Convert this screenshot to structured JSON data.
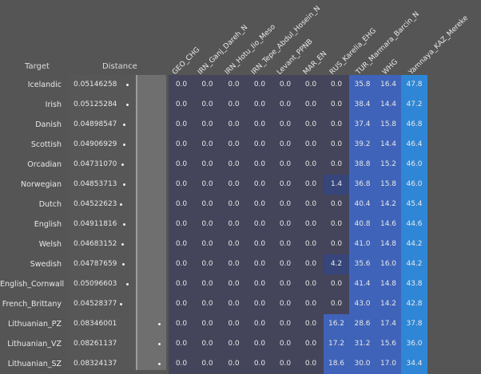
{
  "header": {
    "target": "Target",
    "distance": "Distance",
    "columns": [
      "GEO_CHG",
      "IRN_Ganj_Dareh_N",
      "IRN_Hotu_Iio_Meso",
      "IRN_Tepe_Abdul_Hosein_N",
      "Levant_PPNB",
      "MAR_EN",
      "RUS_Karelia_EHG",
      "TUR_Marmara_Barcin_N",
      "WHG",
      "Yamnaya_KAZ_Mereke"
    ]
  },
  "colors": {
    "background": "#555555",
    "zero_cell": "#44445a",
    "low_blue": "#36457a",
    "mid_blue": "#3f63b8",
    "high_blue": "#2f86d6"
  },
  "rows": [
    {
      "target": "Icelandic",
      "distance": "0.05146258",
      "dot": 0.05146258,
      "values": [
        "0.0",
        "0.0",
        "0.0",
        "0.0",
        "0.0",
        "0.0",
        "0.0",
        "35.8",
        "16.4",
        "47.8"
      ]
    },
    {
      "target": "Irish",
      "distance": "0.05125284",
      "dot": 0.05125284,
      "values": [
        "0.0",
        "0.0",
        "0.0",
        "0.0",
        "0.0",
        "0.0",
        "0.0",
        "38.4",
        "14.4",
        "47.2"
      ]
    },
    {
      "target": "Danish",
      "distance": "0.04898547",
      "dot": 0.04898547,
      "values": [
        "0.0",
        "0.0",
        "0.0",
        "0.0",
        "0.0",
        "0.0",
        "0.0",
        "37.4",
        "15.8",
        "46.8"
      ]
    },
    {
      "target": "Scottish",
      "distance": "0.04906929",
      "dot": 0.04906929,
      "values": [
        "0.0",
        "0.0",
        "0.0",
        "0.0",
        "0.0",
        "0.0",
        "0.0",
        "39.2",
        "14.4",
        "46.4"
      ]
    },
    {
      "target": "Orcadian",
      "distance": "0.04731070",
      "dot": 0.0473107,
      "values": [
        "0.0",
        "0.0",
        "0.0",
        "0.0",
        "0.0",
        "0.0",
        "0.0",
        "38.8",
        "15.2",
        "46.0"
      ]
    },
    {
      "target": "Norwegian",
      "distance": "0.04853713",
      "dot": 0.04853713,
      "values": [
        "0.0",
        "0.0",
        "0.0",
        "0.0",
        "0.0",
        "0.0",
        "1.4",
        "36.8",
        "15.8",
        "46.0"
      ]
    },
    {
      "target": "Dutch",
      "distance": "0.04522623",
      "dot": 0.04522623,
      "values": [
        "0.0",
        "0.0",
        "0.0",
        "0.0",
        "0.0",
        "0.0",
        "0.0",
        "40.4",
        "14.2",
        "45.4"
      ]
    },
    {
      "target": "English",
      "distance": "0.04911816",
      "dot": 0.04911816,
      "values": [
        "0.0",
        "0.0",
        "0.0",
        "0.0",
        "0.0",
        "0.0",
        "0.0",
        "40.8",
        "14.6",
        "44.6"
      ]
    },
    {
      "target": "Welsh",
      "distance": "0.04683152",
      "dot": 0.04683152,
      "values": [
        "0.0",
        "0.0",
        "0.0",
        "0.0",
        "0.0",
        "0.0",
        "0.0",
        "41.0",
        "14.8",
        "44.2"
      ]
    },
    {
      "target": "Swedish",
      "distance": "0.04787659",
      "dot": 0.04787659,
      "values": [
        "0.0",
        "0.0",
        "0.0",
        "0.0",
        "0.0",
        "0.0",
        "4.2",
        "35.6",
        "16.0",
        "44.2"
      ]
    },
    {
      "target": "English_Cornwall",
      "distance": "0.05096603",
      "dot": 0.05096603,
      "values": [
        "0.0",
        "0.0",
        "0.0",
        "0.0",
        "0.0",
        "0.0",
        "0.0",
        "41.4",
        "14.8",
        "43.8"
      ]
    },
    {
      "target": "French_Brittany",
      "distance": "0.04528377",
      "dot": 0.04528377,
      "values": [
        "0.0",
        "0.0",
        "0.0",
        "0.0",
        "0.0",
        "0.0",
        "0.0",
        "43.0",
        "14.2",
        "42.8"
      ]
    },
    {
      "target": "Lithuanian_PZ",
      "distance": "0.08346001",
      "dot": 0.08346001,
      "values": [
        "0.0",
        "0.0",
        "0.0",
        "0.0",
        "0.0",
        "0.0",
        "16.2",
        "28.6",
        "17.4",
        "37.8"
      ]
    },
    {
      "target": "Lithuanian_VZ",
      "distance": "0.08261137",
      "dot": 0.08261137,
      "values": [
        "0.0",
        "0.0",
        "0.0",
        "0.0",
        "0.0",
        "0.0",
        "17.2",
        "31.2",
        "15.6",
        "36.0"
      ]
    },
    {
      "target": "Lithuanian_SZ",
      "distance": "0.08324137",
      "dot": 0.08324137,
      "values": [
        "0.0",
        "0.0",
        "0.0",
        "0.0",
        "0.0",
        "0.0",
        "18.6",
        "30.0",
        "17.0",
        "34.4"
      ]
    }
  ]
}
